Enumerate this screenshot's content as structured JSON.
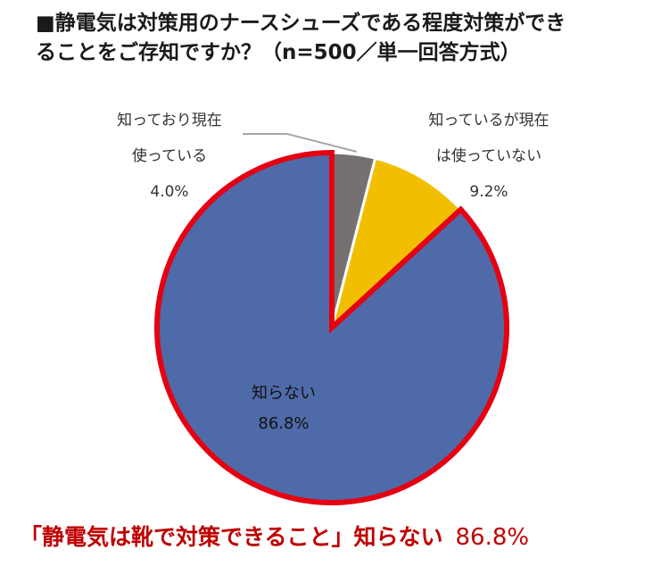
{
  "title": {
    "line1": "■静電気は対策用のナースシューズである程度対策ができ",
    "line2": "ることをご存知ですか？（n=500／単一回答方式）"
  },
  "chart_data": {
    "type": "pie",
    "slices": [
      {
        "label_lines": [
          "知っており現在",
          "使っている"
        ],
        "value": 4.0,
        "value_text": "4.0%",
        "color": "#767171"
      },
      {
        "label_lines": [
          "知っているが現在",
          "は使っていない"
        ],
        "value": 9.2,
        "value_text": "9.2%",
        "color": "#f2bf00"
      },
      {
        "label_lines": [
          "知らない"
        ],
        "value": 86.8,
        "value_text": "86.8%",
        "color": "#4f6aa8"
      }
    ],
    "start_angle_deg": 0,
    "direction": "clockwise",
    "highlight_slice": 2,
    "highlight_color": "#e50012"
  },
  "callout": {
    "text": "「静電気は靴で対策できること」知らない",
    "value": "86.8%"
  }
}
